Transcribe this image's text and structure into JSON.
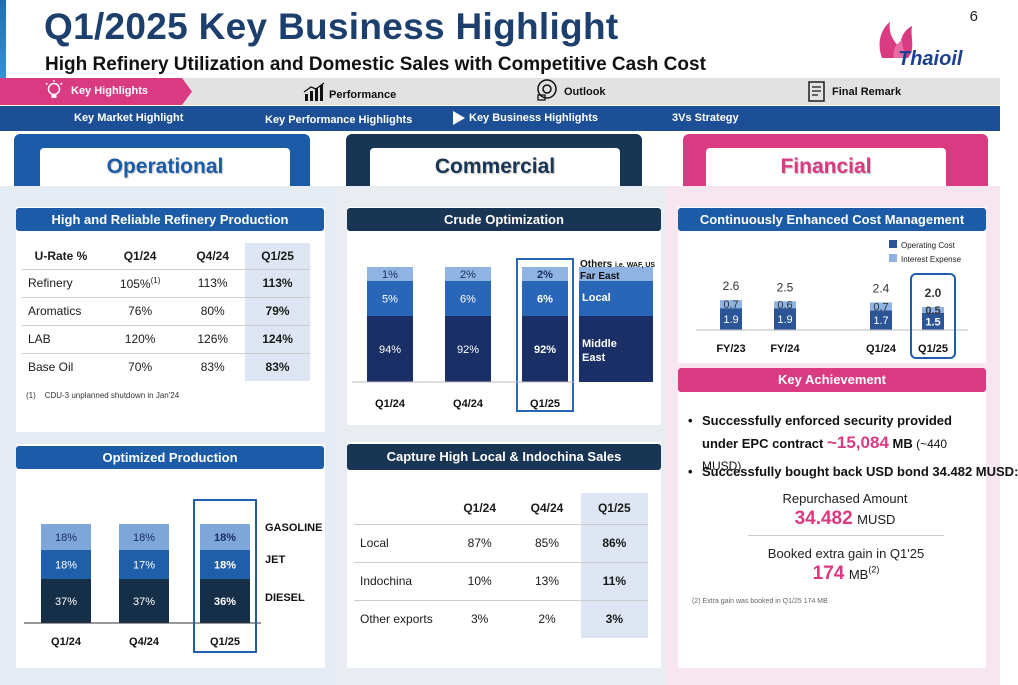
{
  "header": {
    "title": "Q1/2025 Key Business Highlight",
    "subtitle": "High Refinery Utilization and Domestic Sales with Competitive Cash Cost",
    "page_number": "6",
    "logo_text": "Thaioil"
  },
  "nav": {
    "main": [
      {
        "label": "Key Highlights",
        "icon": "lightbulb-icon",
        "active": true
      },
      {
        "label": "Performance",
        "icon": "bar-chart-icon"
      },
      {
        "label": "Outlook",
        "icon": "binoculars-icon"
      },
      {
        "label": "Final Remark",
        "icon": "checklist-icon"
      }
    ],
    "sub": [
      {
        "label": "Key Market Highlight"
      },
      {
        "label": "Key Performance Highlights"
      },
      {
        "label": "Key Business Highlights",
        "active": true
      },
      {
        "label": "3Vs Strategy"
      }
    ]
  },
  "operational": {
    "tab": "Operational",
    "refinery": {
      "title": "High and Reliable Refinery Production",
      "headers": [
        "U-Rate %",
        "Q1/24",
        "Q4/24",
        "Q1/25"
      ],
      "rows": [
        {
          "name": "Refinery",
          "q1_24": "105%",
          "q1_24_sup": "(1)",
          "q4_24": "113%",
          "q1_25": "113%"
        },
        {
          "name": "Aromatics",
          "q1_24": "76%",
          "q1_24_sup": "",
          "q4_24": "80%",
          "q1_25": "79%"
        },
        {
          "name": "LAB",
          "q1_24": "120%",
          "q1_24_sup": "",
          "q4_24": "126%",
          "q1_25": "124%"
        },
        {
          "name": "Base Oil",
          "q1_24": "70%",
          "q1_24_sup": "",
          "q4_24": "83%",
          "q1_25": "83%"
        }
      ],
      "footnote_mark": "(1)",
      "footnote": "CDU-3 unplanned shutdown in Jan'24"
    },
    "production": {
      "title": "Optimized Production",
      "legend": [
        "GASOLINE",
        "JET",
        "DIESEL"
      ]
    }
  },
  "commercial": {
    "tab": "Commercial",
    "crude": {
      "title": "Crude Optimization",
      "legend_others": "Others",
      "legend_others_note": "i.e. WAF, US",
      "legend_fareast": "Far East",
      "legend_local": "Local",
      "legend_middle_east": "Middle East"
    },
    "sales": {
      "title": "Capture High Local & Indochina Sales",
      "headers": [
        "",
        "Q1/24",
        "Q4/24",
        "Q1/25"
      ],
      "rows": [
        {
          "name": "Local",
          "q1_24": "87%",
          "q4_24": "85%",
          "q1_25": "86%"
        },
        {
          "name": "Indochina",
          "q1_24": "10%",
          "q4_24": "13%",
          "q1_25": "11%"
        },
        {
          "name": "Other exports",
          "q1_24": "3%",
          "q4_24": "2%",
          "q1_25": "3%"
        }
      ]
    }
  },
  "financial": {
    "tab": "Financial",
    "cost": {
      "title": "Continuously Enhanced Cost Management",
      "legend": [
        "Operating Cost",
        "Interest Expense"
      ]
    },
    "achievement": {
      "title": "Key Achievement",
      "bullet1_a": "Successfully enforced security provided under EPC contract ",
      "bullet1_value": "~15,084",
      "bullet1_unit": " MB",
      "bullet1_note": " (~440 MUSD)",
      "bullet2": "Successfully bought back USD bond 34.482 MUSD:",
      "repurchased_label": "Repurchased Amount",
      "repurchased_value": "34.482",
      "repurchased_unit": "MUSD",
      "gain_label": "Booked extra gain in Q1'25",
      "gain_value": "174",
      "gain_unit": "MB",
      "gain_mark": "(2)",
      "footnote_mark": "(2)",
      "footnote": "Extra gain was booked in Q1/25 174 MB"
    }
  },
  "colors": {
    "navy": "#1d3f6e",
    "blue": "#1c5ba8",
    "pink": "#d93a82",
    "dark": "#183553",
    "light": "#8fb3e3"
  },
  "chart_data": [
    {
      "type": "bar",
      "stacked": true,
      "name": "Crude Optimization",
      "categories": [
        "Q1/24",
        "Q4/24",
        "Q1/25"
      ],
      "series": [
        {
          "name": "Middle East",
          "values": [
            94,
            92,
            92
          ],
          "labels": [
            "94%",
            "92%",
            "92%"
          ]
        },
        {
          "name": "Local",
          "values": [
            5,
            6,
            6
          ],
          "labels": [
            "5%",
            "6%",
            "6%"
          ]
        },
        {
          "name": "Others / Far East",
          "values": [
            1,
            2,
            2
          ],
          "labels": [
            "1%",
            "2%",
            "2%"
          ]
        }
      ]
    },
    {
      "type": "bar",
      "stacked": true,
      "name": "Optimized Production",
      "categories": [
        "Q1/24",
        "Q4/24",
        "Q1/25"
      ],
      "series": [
        {
          "name": "DIESEL",
          "values": [
            37,
            37,
            36
          ],
          "labels": [
            "37%",
            "37%",
            "36%"
          ]
        },
        {
          "name": "JET",
          "values": [
            18,
            17,
            18
          ],
          "labels": [
            "18%",
            "17%",
            "18%"
          ]
        },
        {
          "name": "GASOLINE",
          "values": [
            18,
            18,
            18
          ],
          "labels": [
            "18%",
            "18%",
            "18%"
          ]
        }
      ]
    },
    {
      "type": "bar",
      "stacked": true,
      "name": "Cost Management",
      "categories": [
        "FY/23",
        "FY/24",
        "Q1/24",
        "Q1/25"
      ],
      "series": [
        {
          "name": "Operating Cost",
          "values": [
            1.9,
            1.9,
            1.7,
            1.5
          ],
          "labels": [
            "1.9",
            "1.9",
            "1.7",
            "1.5"
          ]
        },
        {
          "name": "Interest Expense",
          "values": [
            0.7,
            0.6,
            0.7,
            0.5
          ],
          "labels": [
            "0.7",
            "0.6",
            "0.7",
            "0.5"
          ]
        }
      ],
      "totals": [
        "2.6",
        "2.5",
        "2.4",
        "2.0"
      ]
    }
  ]
}
